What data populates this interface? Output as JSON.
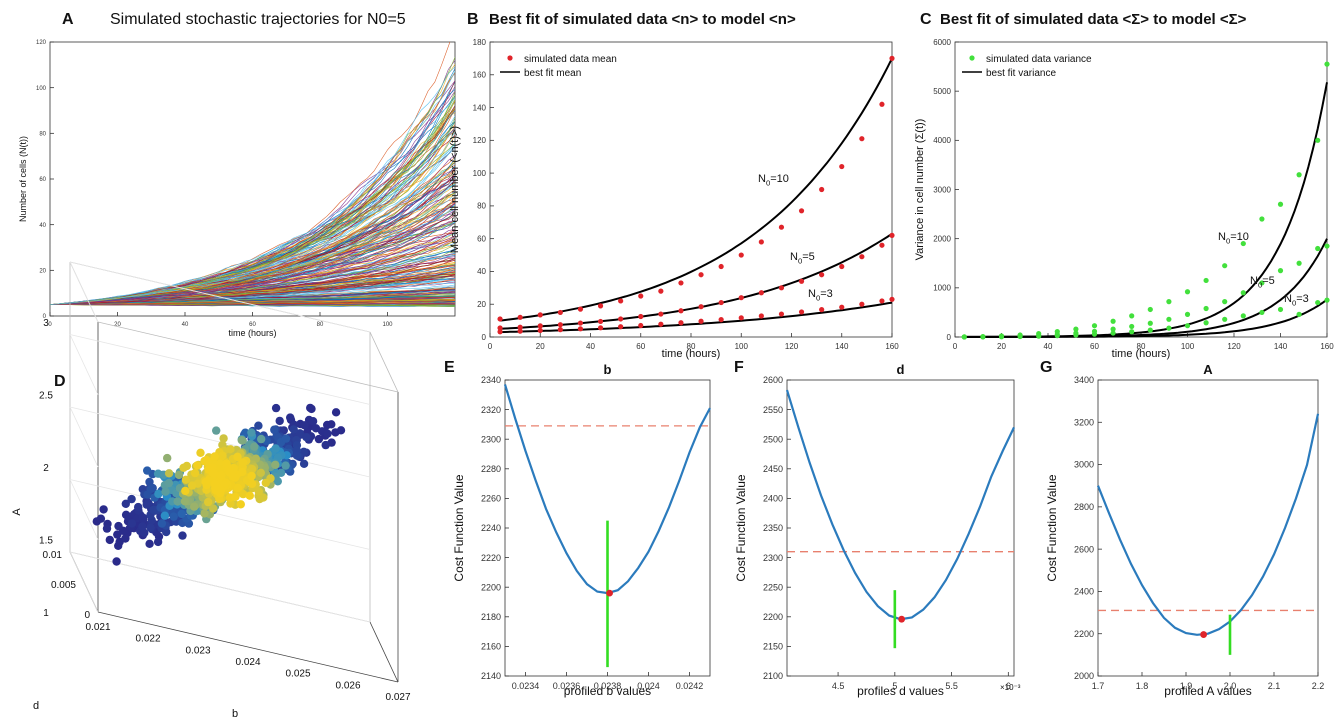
{
  "panels": {
    "A": {
      "letter": "A",
      "title": "Simulated stochastic trajectories for N0=5"
    },
    "B": {
      "letter": "B",
      "title": "Best fit of simulated data <n> to model <n>"
    },
    "C": {
      "letter": "C",
      "title": "Best fit of simulated data <Σ> to model <Σ>"
    },
    "D": {
      "letter": "D"
    },
    "E": {
      "letter": "E",
      "title": "b"
    },
    "F": {
      "letter": "F",
      "title": "d"
    },
    "G": {
      "letter": "G",
      "title": "A"
    }
  },
  "colors": {
    "model_line": "#000000",
    "mean_points": "#e0242a",
    "variance_points": "#42e03c",
    "profile_curve": "#2b7bbd",
    "threshold_line": "#e8806e",
    "interval_bar": "#33dd22",
    "optimum_point": "#e0242a",
    "scatter_low": "#2a2a8a",
    "scatter_high": "#f4d020"
  },
  "chart_data": [
    {
      "id": "A",
      "type": "line",
      "title": "Simulated stochastic trajectories for N0=5",
      "xlabel": "time (hours)",
      "ylabel": "Number of cells (N(t))",
      "xlim": [
        0,
        120
      ],
      "ylim": [
        0,
        120
      ],
      "xticks": [
        0,
        20,
        40,
        60,
        80,
        100
      ],
      "yticks": [
        0,
        20,
        40,
        60,
        80,
        100,
        120
      ],
      "n_trajectories_drawn": 300,
      "initial_value": 5,
      "envelope_at_120h": {
        "min": 5,
        "median": 30,
        "max": 110
      }
    },
    {
      "id": "B",
      "type": "scatter",
      "title": "Best fit of simulated data <n> to model <n>",
      "xlabel": "time (hours)",
      "ylabel": "Mean cell number (<n(t)>)",
      "xlim": [
        0,
        160
      ],
      "ylim": [
        0,
        180
      ],
      "xticks": [
        0,
        20,
        40,
        60,
        80,
        100,
        120,
        140,
        160
      ],
      "yticks": [
        0,
        20,
        40,
        60,
        80,
        100,
        120,
        140,
        160,
        180
      ],
      "legend": {
        "position": "top-left",
        "entries": [
          "simulated data mean",
          "best fit mean"
        ]
      },
      "x": [
        4,
        12,
        20,
        28,
        36,
        44,
        52,
        60,
        68,
        76,
        84,
        92,
        100,
        108,
        116,
        124,
        132,
        140,
        148,
        156,
        160
      ],
      "series": [
        {
          "name": "N0=10",
          "annotation": "N0=10",
          "data": [
            11,
            12,
            13.5,
            15,
            17,
            19,
            22,
            25,
            28,
            33,
            38,
            43,
            50,
            58,
            67,
            77,
            90,
            104,
            121,
            142,
            170
          ],
          "fit_start": 10,
          "fit_end": 170
        },
        {
          "name": "N0=5",
          "annotation": "N0=5",
          "data": [
            5.5,
            6,
            6.8,
            7.5,
            8.5,
            9.5,
            11,
            12.5,
            14,
            16,
            18.5,
            21,
            24,
            27,
            30,
            34,
            38,
            43,
            49,
            56,
            62
          ],
          "fit_start": 5,
          "fit_end": 63
        },
        {
          "name": "N0=3",
          "annotation": "N0=3",
          "data": [
            3.2,
            3.6,
            4,
            4.5,
            5,
            5.6,
            6.3,
            7,
            7.8,
            8.7,
            9.6,
            10.6,
            11.7,
            12.8,
            14,
            15.3,
            16.7,
            18.2,
            20,
            22,
            23
          ],
          "fit_start": 3,
          "fit_end": 21
        }
      ]
    },
    {
      "id": "C",
      "type": "scatter",
      "title": "Best fit of simulated data <Σ> to model <Σ>",
      "xlabel": "time (hours)",
      "ylabel": "Variance in cell number (Σ(t))",
      "xlim": [
        0,
        160
      ],
      "ylim": [
        0,
        6000
      ],
      "xticks": [
        0,
        20,
        40,
        60,
        80,
        100,
        120,
        140,
        160
      ],
      "yticks": [
        0,
        1000,
        2000,
        3000,
        4000,
        5000,
        6000
      ],
      "legend": {
        "position": "top-left",
        "entries": [
          "simulated data variance",
          "best fit variance"
        ]
      },
      "x": [
        4,
        12,
        20,
        28,
        36,
        44,
        52,
        60,
        68,
        76,
        84,
        92,
        100,
        108,
        116,
        124,
        132,
        140,
        148,
        156,
        160
      ],
      "series": [
        {
          "name": "N0=10",
          "annotation": "N0=10",
          "data": [
            2,
            8,
            20,
            40,
            70,
            110,
            160,
            230,
            320,
            430,
            560,
            720,
            920,
            1150,
            1450,
            1900,
            2400,
            2700,
            3300,
            4000,
            5550
          ],
          "fit_k": 0.0335,
          "fit_end": 5180
        },
        {
          "name": "N0=5",
          "annotation": "N0=5",
          "data": [
            1,
            4,
            10,
            20,
            35,
            55,
            80,
            115,
            160,
            215,
            280,
            360,
            460,
            580,
            720,
            900,
            1100,
            1350,
            1500,
            1800,
            1850
          ],
          "fit_k": 0.0335,
          "fit_end": 2000
        },
        {
          "name": "N0=3",
          "annotation": "N0=3",
          "data": [
            0.5,
            2,
            5,
            10,
            18,
            28,
            40,
            58,
            80,
            107,
            140,
            180,
            230,
            290,
            360,
            430,
            500,
            560,
            460,
            700,
            750
          ],
          "fit_k": 0.0335,
          "fit_end": 760
        }
      ]
    },
    {
      "id": "D",
      "type": "scatter",
      "subtype": "3d-density-scatter",
      "xlabel": "b",
      "ylabel": "d",
      "zlabel": "A",
      "xlim": [
        0.021,
        0.027
      ],
      "ylim": [
        0,
        0.01
      ],
      "zlim": [
        1,
        3
      ],
      "xticks": [
        0.021,
        0.022,
        0.023,
        0.024,
        0.025,
        0.026,
        0.027
      ],
      "yticks": [
        0,
        0.005,
        0.01
      ],
      "zticks": [
        1,
        1.5,
        2,
        2.5,
        3
      ],
      "n_points": 900,
      "center": {
        "b": 0.0238,
        "d": 0.005,
        "A": 1.95
      },
      "spread": {
        "b": 0.0012,
        "d": 0.0015,
        "A": 0.3
      }
    },
    {
      "id": "E",
      "type": "line",
      "title": "b",
      "xlabel": "profiled b values",
      "ylabel": "Cost Function Value",
      "xlim": [
        0.0233,
        0.0243
      ],
      "ylim": [
        2140,
        2340
      ],
      "xticks": [
        0.0234,
        0.0236,
        0.0238,
        0.024,
        0.0242
      ],
      "yticks": [
        2140,
        2160,
        2180,
        2200,
        2220,
        2240,
        2260,
        2280,
        2300,
        2320,
        2340
      ],
      "x": [
        0.0233,
        0.02335,
        0.0234,
        0.02345,
        0.0235,
        0.02355,
        0.0236,
        0.02365,
        0.0237,
        0.02375,
        0.0238,
        0.02385,
        0.0239,
        0.02395,
        0.024,
        0.02405,
        0.0241,
        0.02415,
        0.0242,
        0.02425,
        0.0243
      ],
      "y": [
        2337,
        2314,
        2292,
        2272,
        2253,
        2237,
        2223,
        2211,
        2202,
        2197,
        2196,
        2198,
        2204,
        2213,
        2224,
        2238,
        2254,
        2272,
        2291,
        2308,
        2321
      ],
      "threshold": 2309,
      "optimum": {
        "x": 0.02381,
        "y": 2196
      },
      "interval_bar": {
        "x": 0.0238,
        "y_from": 2146,
        "y_to": 2245
      }
    },
    {
      "id": "F",
      "type": "line",
      "title": "d",
      "xlabel": "profiles d values",
      "ylabel": "Cost Function Value",
      "x_exponent_label": "×10⁻³",
      "xlim": [
        4.05,
        6.05
      ],
      "ylim": [
        2100,
        2600
      ],
      "xticks": [
        4.5,
        5,
        5.5,
        6
      ],
      "yticks": [
        2100,
        2150,
        2200,
        2250,
        2300,
        2350,
        2400,
        2450,
        2500,
        2550,
        2600
      ],
      "x": [
        4.05,
        4.15,
        4.25,
        4.35,
        4.45,
        4.55,
        4.65,
        4.75,
        4.85,
        4.95,
        5.05,
        5.15,
        5.25,
        5.35,
        5.45,
        5.55,
        5.65,
        5.75,
        5.85,
        5.95,
        6.05
      ],
      "y": [
        2583,
        2520,
        2460,
        2405,
        2356,
        2312,
        2274,
        2242,
        2218,
        2202,
        2196,
        2199,
        2212,
        2233,
        2262,
        2298,
        2340,
        2386,
        2437,
        2480,
        2520
      ],
      "threshold": 2310,
      "optimum": {
        "x": 5.06,
        "y": 2196
      },
      "interval_bar": {
        "x": 5.0,
        "y_from": 2147,
        "y_to": 2245
      }
    },
    {
      "id": "G",
      "type": "line",
      "title": "A",
      "xlabel": "profiled A values",
      "ylabel": "Cost Function Value",
      "xlim": [
        1.7,
        2.2
      ],
      "ylim": [
        2000,
        3400
      ],
      "xticks": [
        1.7,
        1.8,
        1.9,
        2.0,
        2.1,
        2.2
      ],
      "yticks": [
        2000,
        2200,
        2400,
        2600,
        2800,
        3000,
        3200,
        3400
      ],
      "x": [
        1.7,
        1.725,
        1.75,
        1.775,
        1.8,
        1.825,
        1.85,
        1.875,
        1.9,
        1.925,
        1.95,
        1.975,
        2.0,
        2.025,
        2.05,
        2.075,
        2.1,
        2.125,
        2.15,
        2.175,
        2.2
      ],
      "y": [
        2900,
        2770,
        2645,
        2530,
        2430,
        2345,
        2275,
        2228,
        2203,
        2195,
        2200,
        2222,
        2258,
        2312,
        2382,
        2470,
        2575,
        2700,
        2840,
        2998,
        3240
      ],
      "threshold": 2310,
      "optimum": {
        "x": 1.94,
        "y": 2196
      },
      "interval_bar": {
        "x": 2.0,
        "y_from": 2100,
        "y_to": 2290
      }
    }
  ]
}
